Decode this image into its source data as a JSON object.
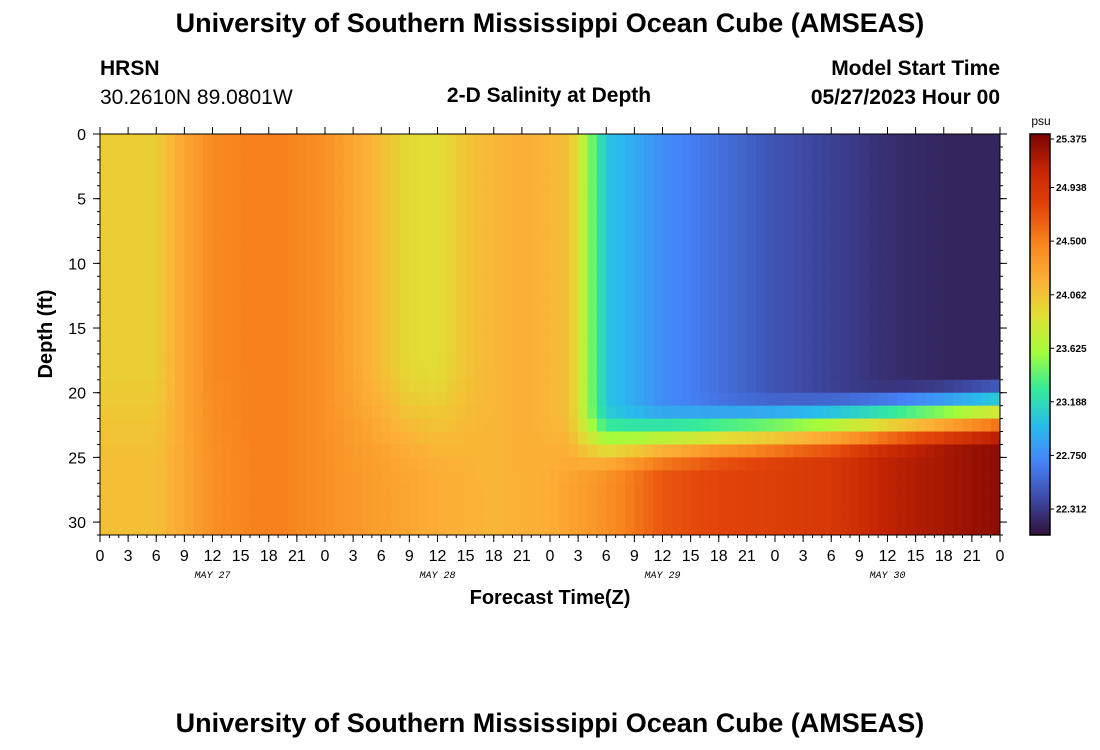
{
  "header": {
    "title": "University of Southern Mississippi Ocean Cube (AMSEAS)",
    "station": "HRSN",
    "coords": "30.2610N  89.0801W",
    "subtitle": "2-D Salinity at Depth",
    "model_start_label": "Model Start Time",
    "model_start_value": "05/27/2023 Hour 00",
    "bottom_title": "University of Southern Mississippi Ocean Cube (AMSEAS)"
  },
  "chart_data": {
    "type": "heatmap",
    "variable": "salinity",
    "xlabel": "Forecast Time(Z)",
    "ylabel": "Depth (ft)",
    "xlim_hours": [
      0,
      96
    ],
    "ylim": [
      0,
      31
    ],
    "y_inverted": true,
    "x_tick_labels": [
      "0",
      "3",
      "6",
      "9",
      "12",
      "15",
      "18",
      "21",
      "0",
      "3",
      "6",
      "9",
      "12",
      "15",
      "18",
      "21",
      "0",
      "3",
      "6",
      "9",
      "12",
      "15",
      "18",
      "21",
      "0",
      "3",
      "6",
      "9",
      "12",
      "15",
      "18",
      "21",
      "0"
    ],
    "y_ticks": [
      0,
      5,
      10,
      15,
      20,
      25,
      30
    ],
    "day_labels": [
      "MAY 27",
      "MAY 28",
      "MAY 29",
      "MAY 30"
    ],
    "colorbar": {
      "unit": "psu",
      "min": 22.1,
      "max": 25.375,
      "tick_labels": [
        "25.375",
        "24.938",
        "24.500",
        "24.062",
        "23.625",
        "23.188",
        "22.750",
        "22.312"
      ],
      "colors": [
        "#30123b",
        "#3e4aa5",
        "#4683f9",
        "#28bceb",
        "#35eb9a",
        "#a4fc3b",
        "#e0e034",
        "#fcb036",
        "#f8851e",
        "#e4460a",
        "#c42503",
        "#7a0403"
      ]
    },
    "surface_profile_hours": [
      0,
      6,
      9,
      12,
      16,
      20,
      24,
      30,
      33,
      36,
      40,
      45,
      50,
      51,
      53,
      54,
      57,
      60,
      66,
      72,
      78,
      84,
      90,
      96
    ],
    "surface_profile_psu": [
      24.0,
      24.0,
      24.25,
      24.45,
      24.5,
      24.5,
      24.4,
      24.1,
      23.92,
      23.9,
      24.1,
      24.2,
      24.1,
      23.85,
      23.3,
      23.05,
      22.9,
      22.75,
      22.6,
      22.45,
      22.35,
      22.25,
      22.2,
      22.2
    ],
    "bottom_profile_hours": [
      0,
      6,
      12,
      16,
      20,
      24,
      30,
      36,
      42,
      48,
      54,
      60,
      66,
      72,
      78,
      84,
      90,
      96
    ],
    "bottom_profile_psu": [
      24.1,
      24.1,
      24.4,
      24.5,
      24.5,
      24.4,
      24.3,
      24.2,
      24.15,
      24.2,
      24.4,
      24.7,
      24.8,
      24.85,
      24.9,
      25.1,
      25.2,
      25.3
    ]
  }
}
